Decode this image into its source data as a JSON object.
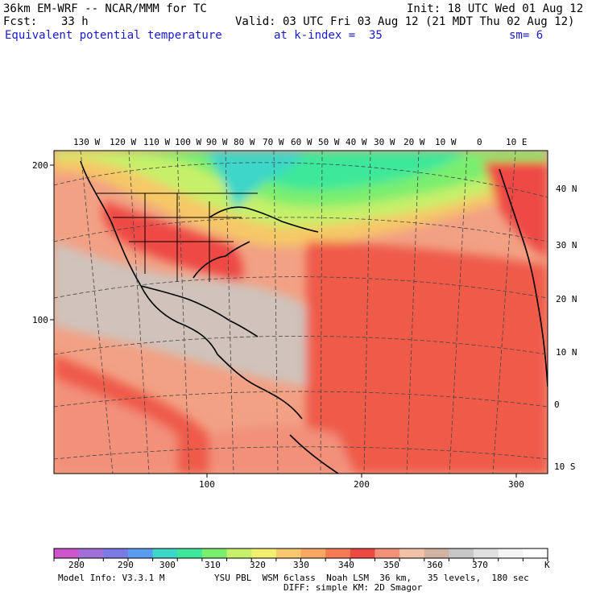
{
  "header": {
    "model": "36km EM-WRF -- NCAR/MMM for TC",
    "init": "Init: 18 UTC Wed 01 Aug 12",
    "fcst_label": "Fcst:",
    "fcst_value": "33 h",
    "valid": "Valid: 03 UTC Fri 03 Aug 12 (21 MDT Thu 02 Aug 12)",
    "field": "Equivalent potential temperature",
    "level": "at k-index =  35",
    "smoothing": "sm= 6"
  },
  "map": {
    "top_lon_labels": [
      "130 W",
      "120 W",
      "110 W",
      "100 W",
      "90 W",
      "80 W",
      "70 W",
      "60 W",
      "50 W",
      "40 W",
      "30 W",
      "20 W",
      "10 W",
      "0",
      "10 E"
    ],
    "right_lat_labels": [
      "40 N",
      "30 N",
      "20 N",
      "10 N",
      "0",
      "10 S"
    ],
    "left_grid_labels": [
      "200",
      "100"
    ],
    "bottom_grid_labels": [
      "100",
      "200",
      "300"
    ]
  },
  "colorbar": {
    "labels": [
      "280",
      "290",
      "300",
      "310",
      "320",
      "330",
      "340",
      "350",
      "360",
      "370"
    ],
    "unit": "K",
    "colors": [
      "#cc55cc",
      "#a070d8",
      "#7a7ae6",
      "#5b9bf0",
      "#3ed6c8",
      "#3ee89a",
      "#7aee6e",
      "#c6f06a",
      "#f2ee6e",
      "#f8c86e",
      "#f6a862",
      "#f47a55",
      "#ee4a44",
      "#f2907a",
      "#f2c2a8",
      "#d2b2a2",
      "#c6c6c6",
      "#e0e0e0",
      "#f4f4f4",
      "#ffffff"
    ]
  },
  "footer": {
    "model_info": "Model Info: V3.3.1 M",
    "physics": "YSU PBL  WSM 6class  Noah LSM  36 km,   35 levels,  180 sec",
    "diffusion": "DIFF: simple KM: 2D Smagor"
  }
}
